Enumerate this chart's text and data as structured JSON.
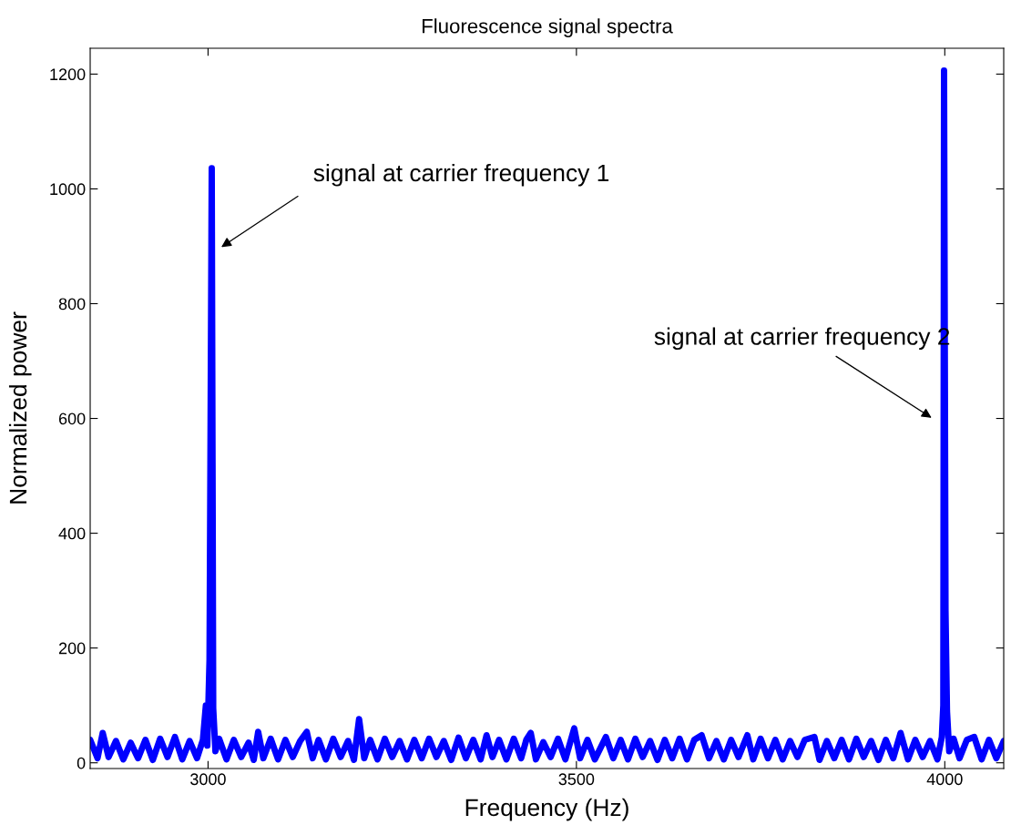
{
  "chart_data": {
    "type": "line",
    "title": "Fluorescence signal spectra",
    "xlabel": "Frequency (Hz)",
    "ylabel": "Normalized power",
    "xlim": [
      2840,
      4080
    ],
    "ylim": [
      -10,
      1245
    ],
    "xticks": [
      3000,
      3500,
      4000
    ],
    "yticks": [
      0,
      200,
      400,
      600,
      800,
      1000,
      1200
    ],
    "grid": false,
    "legend": false,
    "marker": "none",
    "line_style": "solid",
    "annotations": [
      "signal at carrier frequency 1",
      "signal at carrier frequency 2"
    ],
    "series": [
      {
        "color": "#0000ff",
        "x": [
          2840,
          2850,
          2857,
          2865,
          2875,
          2885,
          2895,
          2905,
          2915,
          2925,
          2935,
          2945,
          2955,
          2965,
          2975,
          2985,
          2993,
          2997,
          2999,
          3002,
          3005,
          3007,
          3010,
          3015,
          3025,
          3035,
          3045,
          3055,
          3062,
          3068,
          3075,
          3085,
          3095,
          3105,
          3115,
          3125,
          3134,
          3142,
          3150,
          3160,
          3170,
          3180,
          3190,
          3198,
          3205,
          3212,
          3220,
          3230,
          3240,
          3250,
          3260,
          3270,
          3280,
          3290,
          3300,
          3310,
          3320,
          3330,
          3340,
          3350,
          3360,
          3370,
          3378,
          3386,
          3395,
          3405,
          3415,
          3425,
          3432,
          3438,
          3445,
          3455,
          3465,
          3475,
          3485,
          3497,
          3505,
          3515,
          3525,
          3540,
          3550,
          3560,
          3570,
          3580,
          3590,
          3600,
          3610,
          3620,
          3630,
          3640,
          3650,
          3660,
          3670,
          3680,
          3690,
          3700,
          3710,
          3720,
          3732,
          3740,
          3750,
          3760,
          3770,
          3780,
          3790,
          3800,
          3810,
          3823,
          3830,
          3840,
          3850,
          3860,
          3870,
          3880,
          3890,
          3900,
          3910,
          3920,
          3930,
          3940,
          3950,
          3960,
          3970,
          3980,
          3990,
          3996,
          3998,
          3999,
          4001,
          4003,
          4006,
          4012,
          4020,
          4030,
          4040,
          4050,
          4060,
          4070,
          4080
        ],
        "values": [
          40,
          8,
          52,
          10,
          38,
          6,
          35,
          8,
          40,
          5,
          42,
          10,
          45,
          6,
          38,
          8,
          40,
          100,
          30,
          180,
          1036,
          95,
          20,
          42,
          6,
          40,
          10,
          35,
          5,
          54,
          8,
          42,
          6,
          40,
          10,
          38,
          54,
          8,
          40,
          6,
          42,
          10,
          38,
          5,
          76,
          8,
          40,
          6,
          42,
          10,
          38,
          6,
          40,
          8,
          42,
          10,
          38,
          5,
          44,
          8,
          40,
          6,
          48,
          10,
          40,
          6,
          42,
          8,
          40,
          52,
          6,
          36,
          10,
          42,
          6,
          60,
          8,
          40,
          6,
          45,
          8,
          40,
          6,
          42,
          10,
          38,
          5,
          40,
          8,
          42,
          6,
          40,
          48,
          8,
          38,
          6,
          40,
          10,
          48,
          6,
          42,
          8,
          40,
          6,
          38,
          10,
          40,
          45,
          5,
          38,
          8,
          40,
          6,
          42,
          10,
          38,
          5,
          40,
          8,
          52,
          6,
          40,
          10,
          38,
          6,
          45,
          100,
          1206,
          265,
          90,
          20,
          42,
          8,
          40,
          45,
          6,
          40,
          8,
          38
        ]
      }
    ]
  }
}
